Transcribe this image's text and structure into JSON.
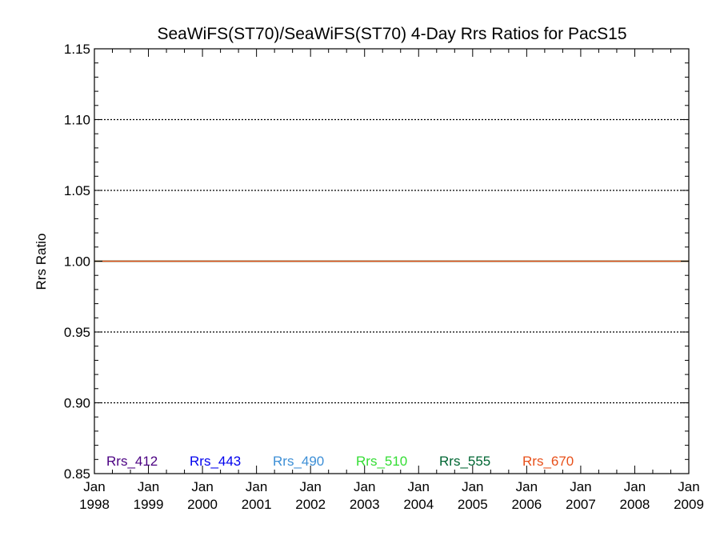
{
  "chart_data": {
    "type": "line",
    "title": "SeaWiFS(ST70)/SeaWiFS(ST70) 4-Day Rrs Ratios for PacS15",
    "xlabel": "",
    "ylabel": "Rrs Ratio",
    "ylim": [
      0.85,
      1.15
    ],
    "xlim": [
      "1998-01",
      "2009-01"
    ],
    "y_ticks": [
      "0.85",
      "0.90",
      "0.95",
      "1.00",
      "1.05",
      "1.10",
      "1.15"
    ],
    "x_ticks": [
      {
        "month": "Jan",
        "year": "1998"
      },
      {
        "month": "Jan",
        "year": "1999"
      },
      {
        "month": "Jan",
        "year": "2000"
      },
      {
        "month": "Jan",
        "year": "2001"
      },
      {
        "month": "Jan",
        "year": "2002"
      },
      {
        "month": "Jan",
        "year": "2003"
      },
      {
        "month": "Jan",
        "year": "2004"
      },
      {
        "month": "Jan",
        "year": "2005"
      },
      {
        "month": "Jan",
        "year": "2006"
      },
      {
        "month": "Jan",
        "year": "2007"
      },
      {
        "month": "Jan",
        "year": "2008"
      },
      {
        "month": "Jan",
        "year": "2009"
      }
    ],
    "gridlines_y": [
      0.9,
      0.95,
      1.0,
      1.05,
      1.1
    ],
    "grid_style": "dotted",
    "legend_placement": "bottom",
    "series": [
      {
        "name": "Rrs_412",
        "color": "#4b0082",
        "x": [
          "1998-01",
          "2009-01"
        ],
        "values": [
          1.0,
          1.0
        ]
      },
      {
        "name": "Rrs_443",
        "color": "#0000ee",
        "x": [
          "1998-01",
          "2009-01"
        ],
        "values": [
          1.0,
          1.0
        ]
      },
      {
        "name": "Rrs_490",
        "color": "#3d8fd6",
        "x": [
          "1998-01",
          "2009-01"
        ],
        "values": [
          1.0,
          1.0
        ]
      },
      {
        "name": "Rrs_510",
        "color": "#33dd33",
        "x": [
          "1998-01",
          "2009-01"
        ],
        "values": [
          1.0,
          1.0
        ]
      },
      {
        "name": "Rrs_555",
        "color": "#006633",
        "x": [
          "1998-01",
          "2009-01"
        ],
        "values": [
          1.0,
          1.0
        ]
      },
      {
        "name": "Rrs_670",
        "color": "#e8501a",
        "x": [
          "1998-01",
          "2009-01"
        ],
        "values": [
          1.0,
          1.0
        ]
      }
    ]
  }
}
